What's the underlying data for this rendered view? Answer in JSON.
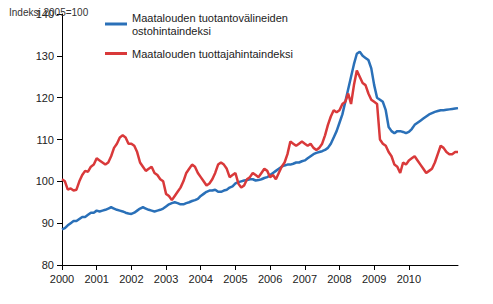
{
  "chart_data": {
    "type": "line",
    "ylabel": "Indeksi 2005=100",
    "categories": [
      "2000",
      null,
      null,
      null,
      null,
      null,
      null,
      null,
      null,
      null,
      null,
      null,
      "2001",
      null,
      null,
      null,
      null,
      null,
      null,
      null,
      null,
      null,
      null,
      null,
      "2002",
      null,
      null,
      null,
      null,
      null,
      null,
      null,
      null,
      null,
      null,
      null,
      "2003",
      null,
      null,
      null,
      null,
      null,
      null,
      null,
      null,
      null,
      null,
      null,
      "2004",
      null,
      null,
      null,
      null,
      null,
      null,
      null,
      null,
      null,
      null,
      null,
      "2005",
      null,
      null,
      null,
      null,
      null,
      null,
      null,
      null,
      null,
      null,
      null,
      "2006",
      null,
      null,
      null,
      null,
      null,
      null,
      null,
      null,
      null,
      null,
      null,
      "2007",
      null,
      null,
      null,
      null,
      null,
      null,
      null,
      null,
      null,
      null,
      null,
      "2008",
      null,
      null,
      null,
      null,
      null,
      null,
      null,
      null,
      null,
      null,
      null,
      "2009",
      null,
      null,
      null,
      null,
      null,
      null,
      null,
      null,
      null,
      null,
      null,
      "2010",
      null,
      null,
      null,
      null,
      null,
      null,
      null,
      null,
      null,
      null,
      null,
      null,
      null,
      null,
      null,
      null,
      null
    ],
    "series": [
      {
        "name": "Maatalouden tuotantovälineiden\nostohintaindeksi",
        "color": "#2a70b8",
        "values": [
          88.5,
          88.8,
          89.5,
          90,
          90.5,
          90.5,
          91,
          91.5,
          91.5,
          92,
          92.5,
          92.5,
          93,
          92.8,
          93,
          93.2,
          93.5,
          93.8,
          93.5,
          93.2,
          93,
          92.8,
          92.5,
          92.3,
          92.2,
          92.5,
          93,
          93.5,
          93.8,
          93.5,
          93.2,
          93,
          92.8,
          93,
          93.2,
          93.5,
          94,
          94.5,
          94.8,
          95,
          94.8,
          94.5,
          94.5,
          94.8,
          95,
          95.3,
          95.5,
          95.8,
          96.5,
          97,
          97.5,
          97.8,
          97.8,
          98,
          97.5,
          97.5,
          97.8,
          98,
          98.5,
          98.8,
          99.5,
          99.8,
          100,
          100.2,
          100.3,
          100.5,
          100.5,
          100.2,
          100.3,
          100.5,
          100.8,
          101,
          101.5,
          102,
          102.5,
          103,
          103.5,
          103.8,
          104,
          104,
          104.2,
          104.5,
          104.5,
          104.8,
          105,
          105.5,
          106,
          106.5,
          106.8,
          107,
          107.2,
          107.5,
          108,
          109,
          110.5,
          112,
          114,
          116,
          119,
          122,
          125,
          128,
          130.5,
          131,
          130,
          129.5,
          129,
          127,
          123,
          120,
          119.5,
          119,
          117,
          113,
          112,
          111.5,
          112,
          112,
          111.8,
          111.5,
          111.8,
          112.5,
          113.5,
          114,
          114.5,
          115,
          115.5,
          116,
          116.3,
          116.6,
          116.8,
          117,
          117,
          117.1,
          117.2,
          117.3,
          117.4,
          117.5
        ]
      },
      {
        "name": "Maatalouden tuottajahintaindeksi",
        "color": "#d9393a",
        "values": [
          100.5,
          100,
          98,
          98.3,
          97.8,
          98,
          100,
          101.5,
          102.5,
          102.3,
          103.5,
          104,
          105.5,
          105,
          104.5,
          104,
          104.5,
          106,
          108,
          109,
          110.5,
          111,
          110.5,
          109,
          109,
          108.5,
          107,
          104.5,
          103.5,
          102.5,
          103,
          103.5,
          102,
          101.5,
          100.5,
          100,
          97,
          96.5,
          95.5,
          96.5,
          97.5,
          98.5,
          100,
          102,
          103,
          104,
          103.5,
          102,
          101,
          100,
          99,
          99.5,
          100.5,
          102,
          104,
          104.5,
          104,
          103,
          101,
          101.5,
          102,
          99.5,
          98.5,
          99,
          100.5,
          101,
          102,
          101.5,
          101,
          102,
          103,
          102.5,
          101,
          101.5,
          100.5,
          102,
          103.5,
          104.5,
          106.5,
          109.5,
          109,
          108.5,
          109,
          109.5,
          109,
          108.5,
          109,
          108,
          107.5,
          108,
          109,
          111,
          113.5,
          115.5,
          117,
          116.5,
          117,
          118.5,
          119,
          121,
          118.5,
          123,
          126.5,
          125,
          123.5,
          123,
          121,
          119.5,
          119,
          118.5,
          110,
          109,
          108.5,
          107,
          106,
          104,
          103.5,
          102,
          104.5,
          104,
          105,
          105.5,
          106,
          105,
          104,
          103,
          102,
          102.5,
          103,
          104.5,
          106.5,
          108.5,
          108,
          107,
          106.5,
          106.5,
          107,
          107
        ]
      }
    ],
    "ylim": [
      80,
      140
    ],
    "yticks": [
      80,
      90,
      100,
      110,
      120,
      130,
      140
    ],
    "grid": false,
    "legend": "upper left"
  }
}
